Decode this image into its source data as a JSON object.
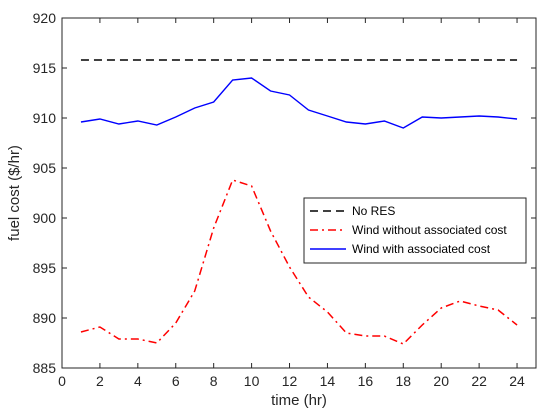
{
  "chart_data": {
    "type": "line",
    "title": "",
    "xlabel": "time (hr)",
    "ylabel": "fuel cost ($/hr)",
    "xlim": [
      0,
      25
    ],
    "ylim": [
      885,
      920
    ],
    "xticks": [
      0,
      2,
      4,
      6,
      8,
      10,
      12,
      14,
      16,
      18,
      20,
      22,
      24
    ],
    "yticks": [
      885,
      890,
      895,
      900,
      905,
      910,
      915,
      920
    ],
    "grid": false,
    "legend_position": "center-right",
    "x": [
      1,
      2,
      3,
      4,
      5,
      6,
      7,
      8,
      9,
      10,
      11,
      12,
      13,
      14,
      15,
      16,
      17,
      18,
      19,
      20,
      21,
      22,
      23,
      24
    ],
    "series": [
      {
        "name": "No RES",
        "color": "#000000",
        "style": "dashed",
        "values": [
          915.8,
          915.8,
          915.8,
          915.8,
          915.8,
          915.8,
          915.8,
          915.8,
          915.8,
          915.8,
          915.8,
          915.8,
          915.8,
          915.8,
          915.8,
          915.8,
          915.8,
          915.8,
          915.8,
          915.8,
          915.8,
          915.8,
          915.8,
          915.8
        ]
      },
      {
        "name": "Wind without associated cost",
        "color": "#ff0000",
        "style": "dashdot",
        "values": [
          888.6,
          889.1,
          887.9,
          887.9,
          887.5,
          889.5,
          892.7,
          899.0,
          903.8,
          903.2,
          898.7,
          895.1,
          892.1,
          890.6,
          888.5,
          888.2,
          888.2,
          887.4,
          889.3,
          891.0,
          891.7,
          891.2,
          890.8,
          889.3
        ]
      },
      {
        "name": "Wind with associated cost",
        "color": "#0000ff",
        "style": "solid",
        "values": [
          909.6,
          909.9,
          909.4,
          909.7,
          909.3,
          910.1,
          911.0,
          911.6,
          913.8,
          914.0,
          912.7,
          912.3,
          910.8,
          910.2,
          909.6,
          909.4,
          909.7,
          909.0,
          910.1,
          910.0,
          910.1,
          910.2,
          910.1,
          909.9
        ]
      }
    ]
  }
}
